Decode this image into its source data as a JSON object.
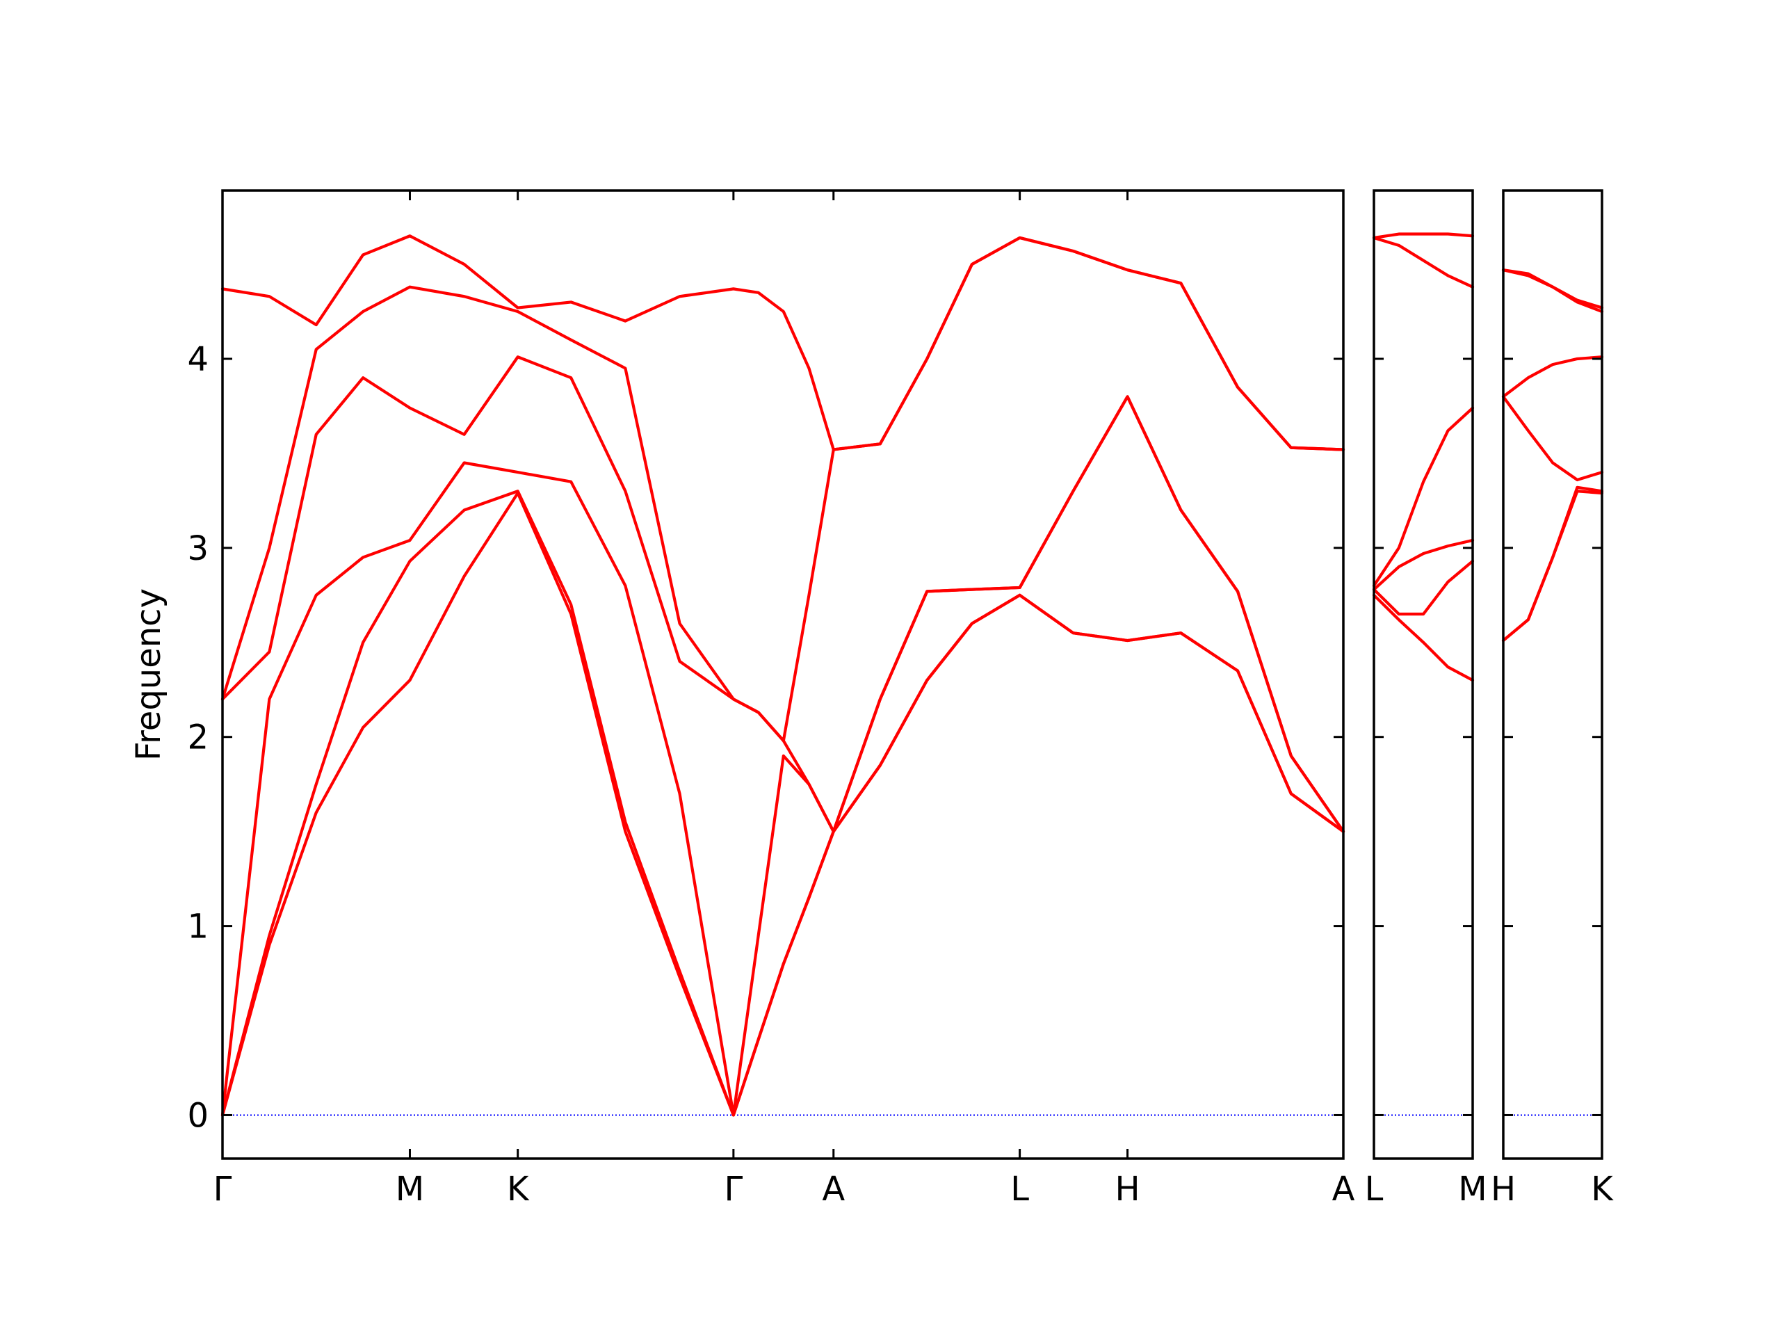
{
  "chart_data": [
    {
      "type": "line",
      "ylabel": "Frequency",
      "x": [
        0,
        0.25,
        0.5,
        0.75,
        1,
        1.29,
        1.576,
        1.86,
        2.15,
        2.44,
        2.727,
        2.86,
        2.994,
        3.13,
        3.261,
        3.51,
        3.76,
        4.0,
        4.255,
        4.54,
        4.83,
        5.115,
        5.418,
        5.703,
        5.982
      ],
      "xlim": [
        0,
        5.982
      ],
      "xticks": [
        {
          "value": 0,
          "label": "Γ"
        },
        {
          "value": 1,
          "label": "M"
        },
        {
          "value": 1.576,
          "label": "K"
        },
        {
          "value": 2.727,
          "label": "Γ"
        },
        {
          "value": 3.261,
          "label": "A"
        },
        {
          "value": 4.255,
          "label": "L"
        },
        {
          "value": 4.83,
          "label": "H"
        },
        {
          "value": 5.982,
          "label": "A"
        }
      ],
      "ylim": [
        -0.23,
        4.89
      ],
      "yticks": [
        0,
        1,
        2,
        3,
        4
      ],
      "ytick_labels": true,
      "hline": 0,
      "hline_color": "#0000ff",
      "series": [
        {
          "color": "#ff0000",
          "values": [
            0,
            0.9,
            1.6,
            2.05,
            2.3,
            2.85,
            3.29,
            2.65,
            1.5,
            0.73,
            0,
            0.4,
            0.8,
            1.15,
            1.5,
            1.85,
            2.3,
            2.6,
            2.75,
            2.55,
            2.51,
            2.55,
            2.35,
            1.7,
            1.5
          ]
        },
        {
          "color": "#ff0000",
          "values": [
            0,
            0.95,
            1.75,
            2.5,
            2.93,
            3.2,
            3.3,
            2.7,
            1.55,
            0.76,
            0,
            0.4,
            0.8,
            1.15,
            1.5,
            1.85,
            2.3,
            2.6,
            2.75,
            2.55,
            2.51,
            2.55,
            2.35,
            1.7,
            1.5
          ]
        },
        {
          "color": "#ff0000",
          "values": [
            0,
            2.2,
            2.75,
            2.95,
            3.04,
            3.45,
            3.4,
            3.35,
            2.8,
            1.7,
            0,
            0.95,
            1.9,
            1.75,
            1.5,
            2.2,
            2.77,
            2.78,
            2.79,
            3.3,
            3.8,
            3.2,
            2.77,
            1.9,
            1.5
          ]
        },
        {
          "color": "#ff0000",
          "values": [
            2.2,
            2.45,
            3.6,
            3.9,
            3.74,
            3.6,
            4.01,
            3.9,
            3.3,
            2.4,
            2.2,
            2.13,
            1.98,
            1.75,
            1.5,
            2.2,
            2.77,
            2.78,
            2.79,
            3.3,
            3.8,
            3.2,
            2.77,
            1.9,
            1.5
          ]
        },
        {
          "color": "#ff0000",
          "values": [
            2.2,
            3.0,
            4.05,
            4.25,
            4.38,
            4.33,
            4.25,
            4.1,
            3.95,
            2.6,
            2.2,
            2.13,
            1.98,
            2.75,
            3.52,
            3.55,
            4.0,
            4.5,
            4.64,
            4.57,
            4.47,
            4.4,
            3.85,
            3.53,
            3.52
          ]
        },
        {
          "color": "#ff0000",
          "values": [
            4.37,
            4.33,
            4.18,
            4.55,
            4.65,
            4.5,
            4.27,
            4.3,
            4.2,
            4.33,
            4.37,
            4.35,
            4.25,
            3.95,
            3.52,
            3.55,
            4.0,
            4.5,
            4.64,
            4.57,
            4.47,
            4.4,
            3.85,
            3.53,
            3.52
          ]
        }
      ]
    },
    {
      "type": "line",
      "x": [
        0,
        0.133,
        0.264,
        0.395,
        0.527
      ],
      "xlim": [
        0,
        0.527
      ],
      "xticks": [
        {
          "value": 0,
          "label": "L"
        },
        {
          "value": 0.527,
          "label": "M"
        }
      ],
      "ylim": [
        -0.23,
        4.89
      ],
      "yticks": [
        0,
        1,
        2,
        3,
        4
      ],
      "ytick_labels": false,
      "hline": 0,
      "hline_color": "#0000ff",
      "series": [
        {
          "color": "#ff0000",
          "values": [
            2.75,
            2.62,
            2.5,
            2.37,
            2.3
          ]
        },
        {
          "color": "#ff0000",
          "values": [
            2.78,
            2.65,
            2.65,
            2.82,
            2.93
          ]
        },
        {
          "color": "#ff0000",
          "values": [
            2.78,
            2.9,
            2.97,
            3.01,
            3.04
          ]
        },
        {
          "color": "#ff0000",
          "values": [
            2.8,
            3.0,
            3.35,
            3.62,
            3.74
          ]
        },
        {
          "color": "#ff0000",
          "values": [
            4.64,
            4.6,
            4.52,
            4.44,
            4.38
          ]
        },
        {
          "color": "#ff0000",
          "values": [
            4.64,
            4.66,
            4.66,
            4.66,
            4.65
          ]
        }
      ]
    },
    {
      "type": "line",
      "x": [
        0,
        0.133,
        0.264,
        0.395,
        0.527
      ],
      "xlim": [
        0,
        0.527
      ],
      "xticks": [
        {
          "value": 0,
          "label": "H"
        },
        {
          "value": 0.527,
          "label": "K"
        }
      ],
      "ylim": [
        -0.23,
        4.89
      ],
      "yticks": [
        0,
        1,
        2,
        3,
        4
      ],
      "ytick_labels": false,
      "hline": 0,
      "hline_color": "#0000ff",
      "series": [
        {
          "color": "#ff0000",
          "values": [
            2.51,
            2.62,
            2.95,
            3.3,
            3.29
          ]
        },
        {
          "color": "#ff0000",
          "values": [
            2.51,
            2.62,
            2.95,
            3.32,
            3.3
          ]
        },
        {
          "color": "#ff0000",
          "values": [
            3.8,
            3.62,
            3.45,
            3.36,
            3.4
          ]
        },
        {
          "color": "#ff0000",
          "values": [
            3.8,
            3.9,
            3.97,
            4.0,
            4.01
          ]
        },
        {
          "color": "#ff0000",
          "values": [
            4.47,
            4.44,
            4.38,
            4.3,
            4.25
          ]
        },
        {
          "color": "#ff0000",
          "values": [
            4.47,
            4.45,
            4.38,
            4.31,
            4.27
          ]
        }
      ]
    }
  ]
}
